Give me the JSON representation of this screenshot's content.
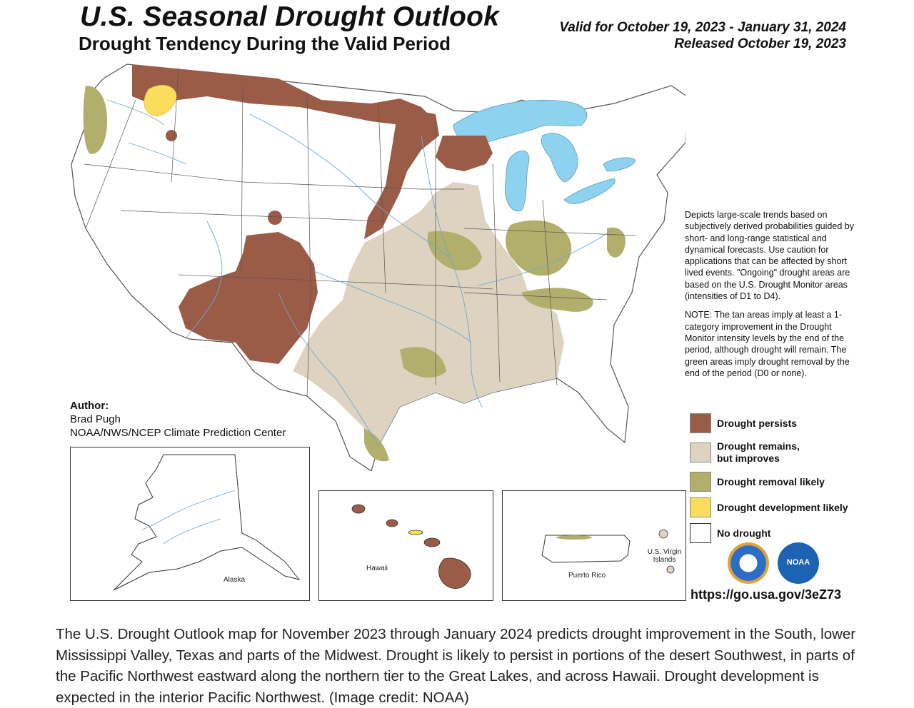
{
  "header": {
    "title": "U.S. Seasonal Drought Outlook",
    "subtitle": "Drought Tendency During the Valid Period",
    "valid_line": "Valid for October 19, 2023 - January 31, 2024",
    "released_line": "Released October 19, 2023"
  },
  "description": {
    "paragraph1": "Depicts large-scale trends based on subjectively derived probabilities guided by short- and long-range statistical and dynamical forecasts. Use caution for applications that can be affected by short lived events. \"Ongoing\" drought areas are based on the U.S. Drought Monitor areas (intensities of D1 to D4).",
    "paragraph2": "NOTE: The tan areas imply at least a 1-category improvement in the Drought Monitor intensity levels by the end of the period, although drought will remain. The green areas imply drought removal by the end of the period (D0 or none)."
  },
  "legend": [
    {
      "label": "Drought persists",
      "color": "#9a5c46"
    },
    {
      "label": "Drought remains, but improves",
      "color": "#ddd3c0"
    },
    {
      "label": "Drought removal likely",
      "color": "#b2ae6b"
    },
    {
      "label": "Drought development likely",
      "color": "#fbdd5e"
    },
    {
      "label": "No drought",
      "color": "#ffffff"
    }
  ],
  "author": {
    "heading": "Author:",
    "name": "Brad Pugh",
    "org": "NOAA/NWS/NCEP Climate Prediction Center"
  },
  "insets": {
    "alaska": "Alaska",
    "hawaii": "Hawaii",
    "puerto_rico": "Puerto Rico",
    "virgin_islands": "U.S. Virgin Islands"
  },
  "logos": {
    "commerce": "commerce-seal-icon",
    "noaa": "NOAA"
  },
  "url": "https://go.usa.gov/3eZ73",
  "caption": "The U.S. Drought Outlook map for November 2023 through January 2024 predicts drought improvement in the South, lower Mississippi Valley, Texas and parts of the Midwest. Drought is likely to persist in portions of the desert Southwest, in parts of the Pacific Northwest eastward along the northern tier to the Great Lakes, and across Hawaii. Drought development is expected in the interior Pacific Northwest. (Image credit: NOAA)",
  "colors": {
    "persists": "#9a5c46",
    "improves": "#ddd3c0",
    "removal": "#b2ae6b",
    "development": "#fbdd5e",
    "water": "#8dd3f0",
    "rivers": "#6fa6d8",
    "borders": "#555555"
  }
}
